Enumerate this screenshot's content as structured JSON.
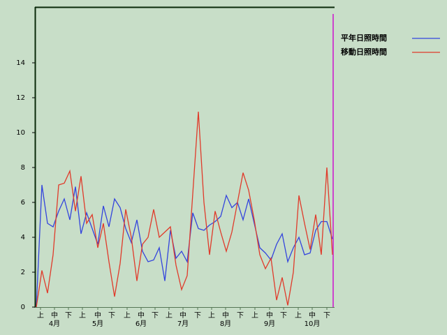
{
  "chart_data": {
    "type": "line",
    "x": [
      0,
      4,
      8,
      12,
      16,
      20,
      24,
      28,
      32,
      36,
      40,
      44,
      48,
      52,
      56,
      60,
      64,
      68,
      72,
      76,
      80,
      84,
      88,
      92,
      96,
      100,
      104,
      108,
      112,
      116,
      120,
      124,
      128,
      132,
      136,
      140,
      144,
      148,
      152,
      156,
      160,
      164,
      168,
      172,
      176,
      180,
      184,
      188,
      192,
      196,
      200,
      204,
      208,
      212
    ],
    "series": [
      {
        "name": "平年日照時間",
        "color": "#3344dd",
        "values": [
          0,
          7.0,
          4.8,
          4.6,
          5.5,
          6.2,
          5.0,
          6.9,
          4.2,
          5.4,
          4.5,
          3.6,
          5.8,
          4.6,
          6.2,
          5.7,
          4.5,
          3.7,
          5.0,
          3.2,
          2.6,
          2.7,
          3.4,
          1.5,
          4.4,
          2.8,
          3.2,
          2.6,
          5.4,
          4.5,
          4.4,
          4.7,
          4.9,
          5.2,
          6.4,
          5.7,
          6.0,
          5.0,
          6.2,
          4.8,
          3.4,
          3.1,
          2.7,
          3.6,
          4.2,
          2.6,
          3.4,
          4.0,
          3.0,
          3.1,
          4.4,
          4.9,
          4.9,
          3.9
        ]
      },
      {
        "name": "移動日照時間",
        "color": "#e03a2a",
        "values": [
          0,
          2.1,
          0.8,
          3.0,
          7.0,
          7.1,
          7.8,
          5.5,
          7.5,
          4.8,
          5.3,
          3.4,
          4.8,
          2.6,
          0.6,
          2.5,
          5.6,
          4.0,
          1.5,
          3.6,
          4.0,
          5.6,
          4.0,
          4.3,
          4.6,
          2.4,
          1.0,
          1.8,
          6.5,
          11.2,
          6.0,
          3.0,
          5.5,
          4.3,
          3.2,
          4.3,
          6.0,
          7.7,
          6.7,
          5.0,
          3.0,
          2.2,
          2.8,
          0.4,
          1.7,
          0.1,
          2.0,
          6.4,
          4.8,
          3.3,
          5.3,
          3.0,
          8.0,
          3.0
        ]
      }
    ],
    "xlim": [
      0,
      213
    ],
    "xticks": [
      {
        "value": 3,
        "label": "上"
      },
      {
        "value": 13,
        "label": "中"
      },
      {
        "value": 23,
        "label": "下"
      },
      {
        "value": 33,
        "label": "上"
      },
      {
        "value": 44,
        "label": "中"
      },
      {
        "value": 54,
        "label": "下"
      },
      {
        "value": 65,
        "label": "上"
      },
      {
        "value": 75,
        "label": "中"
      },
      {
        "value": 85,
        "label": "下"
      },
      {
        "value": 95,
        "label": "上"
      },
      {
        "value": 105,
        "label": "中"
      },
      {
        "value": 115.5,
        "label": "下"
      },
      {
        "value": 125.5,
        "label": "上"
      },
      {
        "value": 135.5,
        "label": "中"
      },
      {
        "value": 146,
        "label": "下"
      },
      {
        "value": 156.5,
        "label": "上"
      },
      {
        "value": 167,
        "label": "中"
      },
      {
        "value": 177,
        "label": "下"
      },
      {
        "value": 187.5,
        "label": "上"
      },
      {
        "value": 197.5,
        "label": "中"
      },
      {
        "value": 208,
        "label": "下"
      }
    ],
    "month_ticks": [
      {
        "value": 13,
        "label": "4月"
      },
      {
        "value": 44,
        "label": "5月"
      },
      {
        "value": 75,
        "label": "6月"
      },
      {
        "value": 105,
        "label": "7月"
      },
      {
        "value": 135.5,
        "label": "8月"
      },
      {
        "value": 167,
        "label": "9月"
      },
      {
        "value": 197.5,
        "label": "10月"
      }
    ],
    "ylim": [
      0,
      17.2
    ],
    "yticks": [
      0,
      2,
      4,
      6,
      8,
      10,
      12,
      14
    ]
  }
}
